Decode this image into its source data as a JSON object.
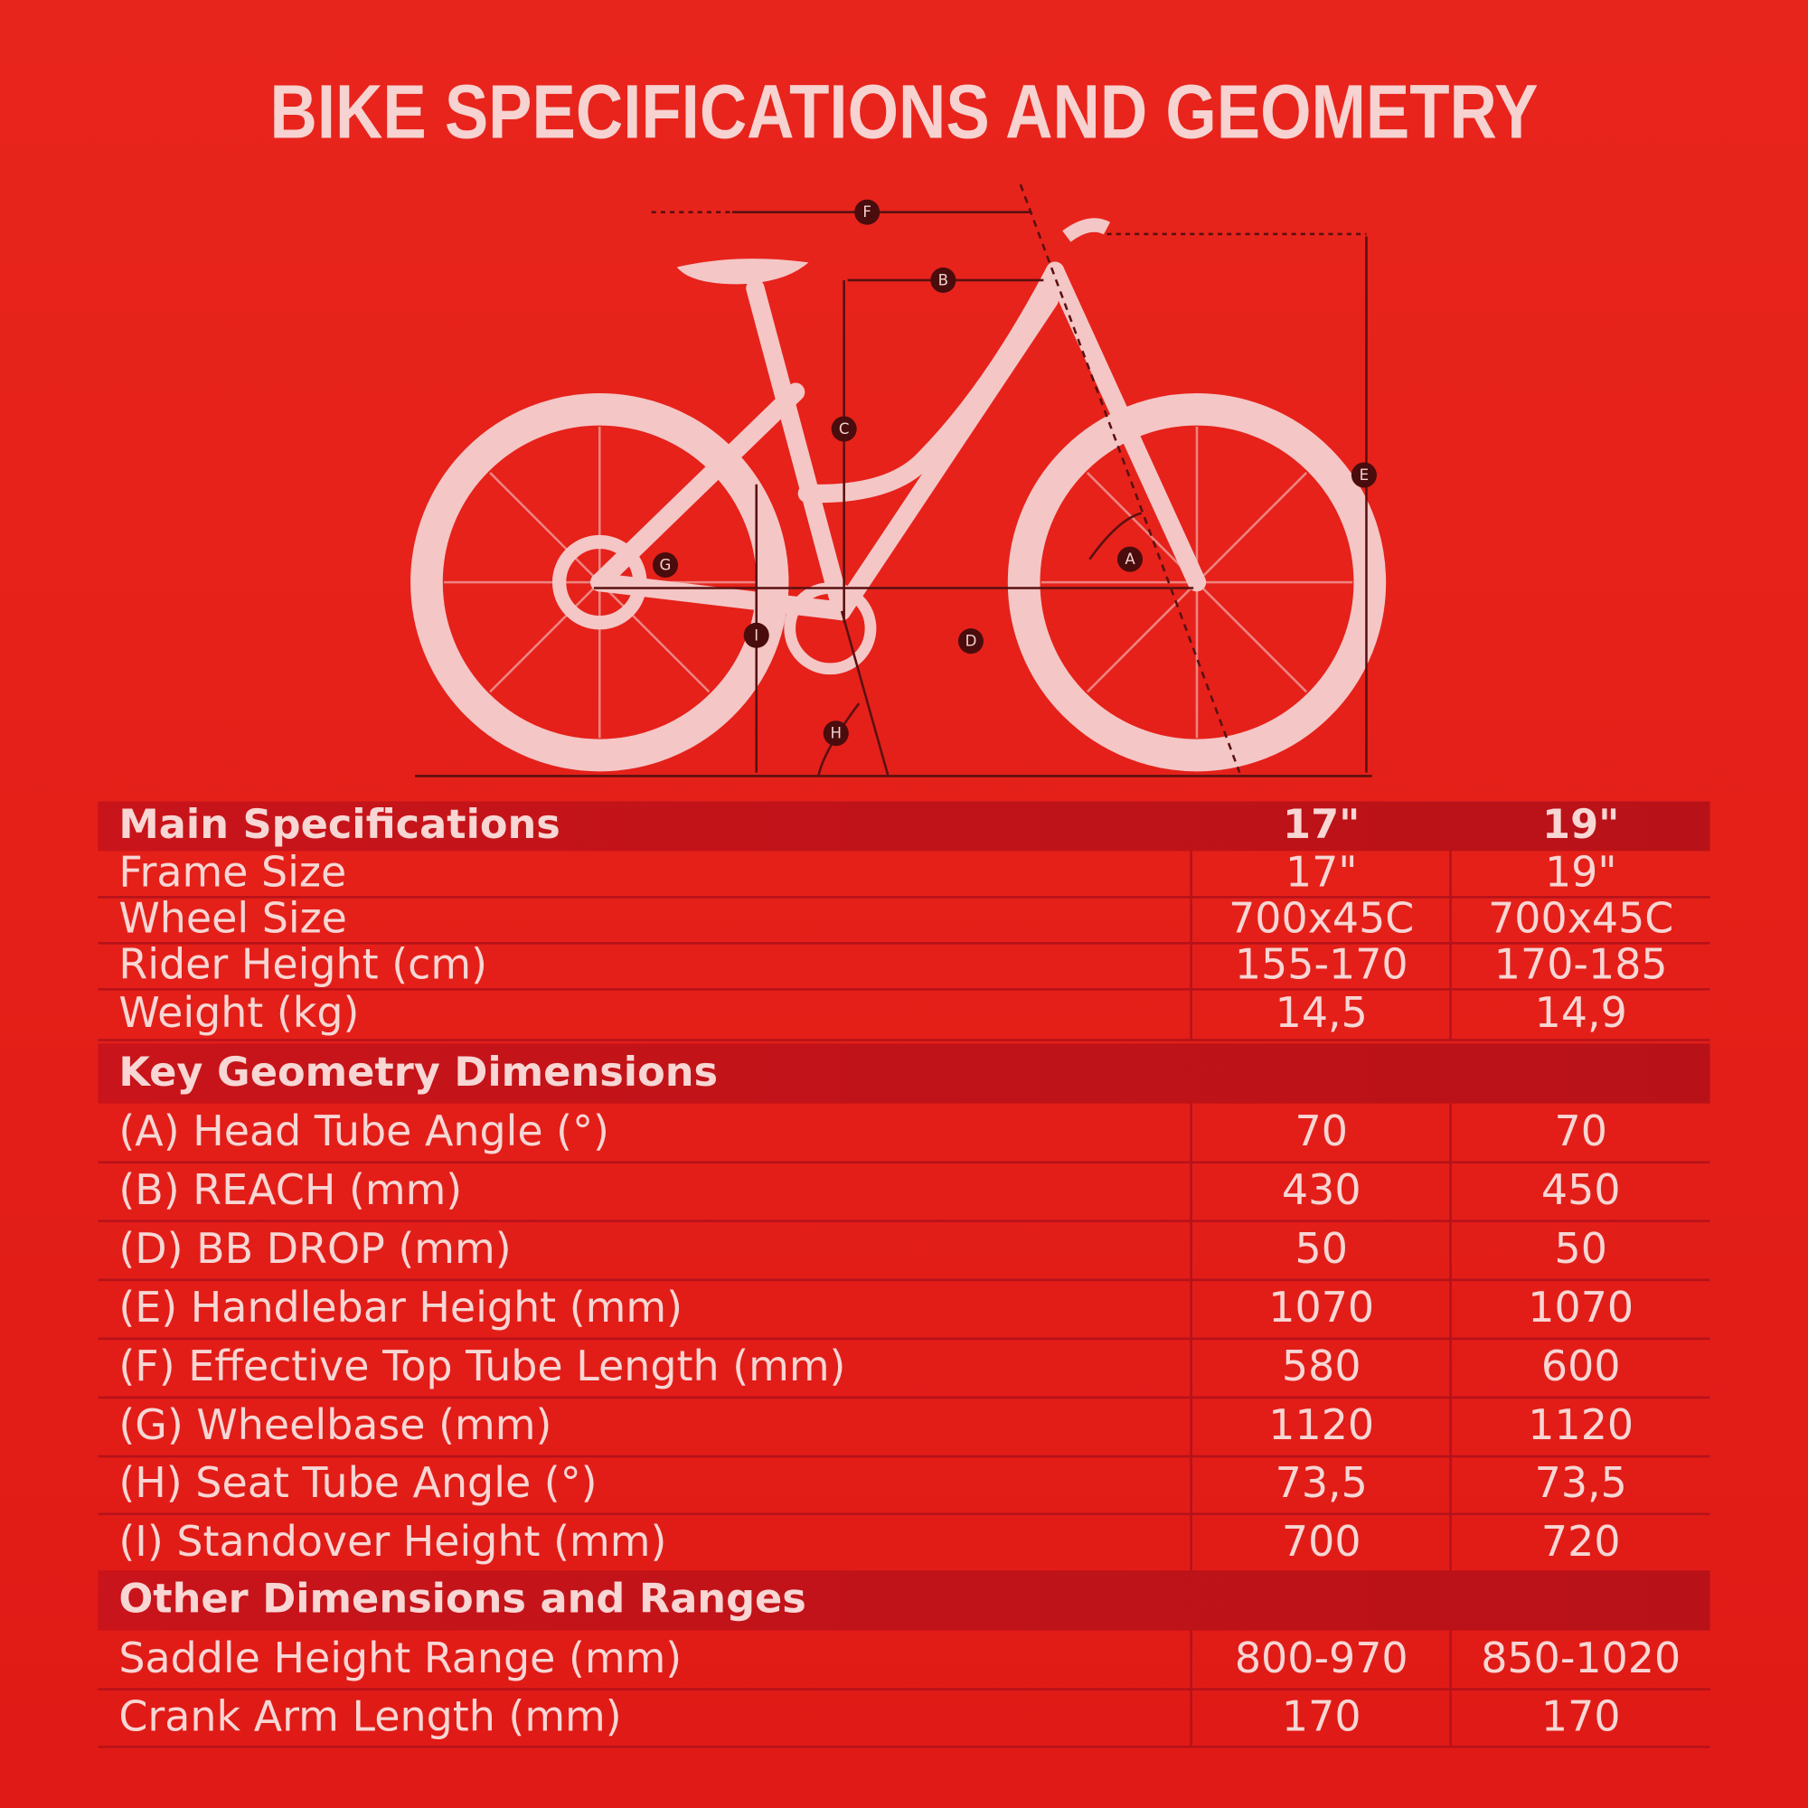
{
  "title": "BIKE SPECIFICATIONS AND GEOMETRY",
  "diagram": {
    "labels": [
      "F",
      "B",
      "C",
      "E",
      "A",
      "G",
      "I",
      "D",
      "H"
    ]
  },
  "table": {
    "sections": [
      {
        "header": "Main Specifications",
        "columns": [
          "17\"",
          "19\""
        ],
        "rows": [
          [
            "Frame Size",
            "17\"",
            "19\""
          ],
          [
            "Wheel Size",
            "700x45C",
            "700x45C"
          ],
          [
            "Rider Height (cm)",
            "155-170",
            "170-185"
          ],
          [
            "Weight (kg)",
            "14,5",
            "14,9"
          ]
        ]
      },
      {
        "header": "Key Geometry Dimensions",
        "rows": [
          [
            "(A) Head Tube Angle (°)",
            "70",
            "70"
          ],
          [
            "(B) REACH (mm)",
            "430",
            "450"
          ],
          [
            "(D) BB DROP (mm)",
            "50",
            "50"
          ],
          [
            "(E) Handlebar Height (mm)",
            "1070",
            "1070"
          ],
          [
            "(F) Effective Top Tube Length (mm)",
            "580",
            "600"
          ],
          [
            "(G) Wheelbase (mm)",
            "1120",
            "1120"
          ],
          [
            "(H) Seat Tube Angle (°)",
            "73,5",
            "73,5"
          ],
          [
            "(I) Standover Height (mm)",
            "700",
            "720"
          ]
        ]
      },
      {
        "header": "Other Dimensions and Ranges",
        "rows": [
          [
            "Saddle Height Range (mm)",
            "800-970",
            "850-1020"
          ],
          [
            "Crank Arm Length (mm)",
            "170",
            "170"
          ]
        ]
      }
    ]
  }
}
